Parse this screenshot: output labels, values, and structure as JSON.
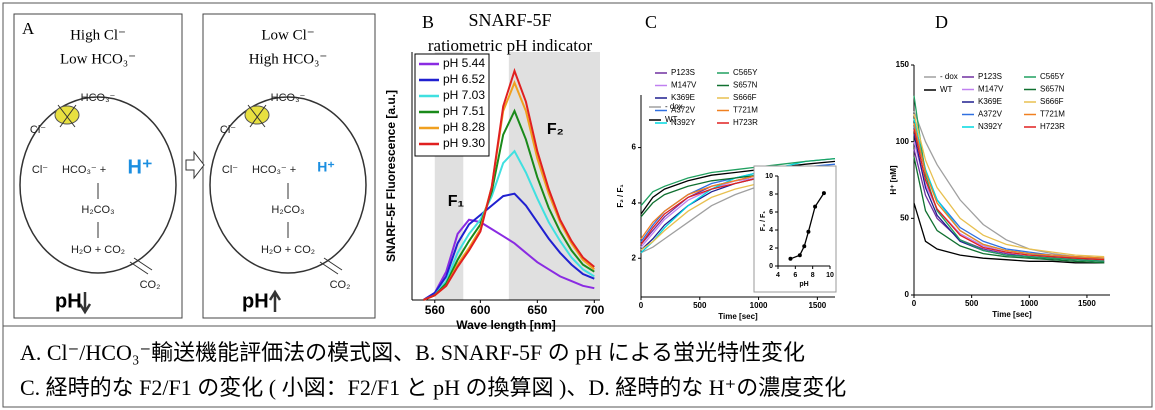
{
  "diagram": {
    "left": {
      "label": "A",
      "title": [
        "High Cl⁻",
        "Low HCO₃⁻"
      ],
      "labels": [
        "Cl⁻",
        "HCO₃⁻",
        "Cl⁻",
        "HCO₃⁻ + ",
        "H⁺",
        "H₂CO₃",
        "H₂O + CO₂",
        "CO₂"
      ],
      "result": "pH"
    },
    "right": {
      "title": [
        "Low Cl⁻",
        "High HCO₃⁻"
      ],
      "labels": [
        "Cl⁻",
        "HCO₃⁻",
        "Cl⁻",
        "HCO₃⁻ + ",
        "H⁺",
        "H₂CO₃",
        "H₂O + CO₂",
        "CO₂"
      ],
      "result": "pH"
    }
  },
  "chart_data": [
    {
      "type": "line",
      "panel_label": "B",
      "title": "SNARF-5F",
      "subtitle": "ratiometric pH indicator",
      "x_label": "Wave length [nm]",
      "y_label": "SNARF-5F Fluorescence [a.u.]",
      "xlim": [
        540,
        705
      ],
      "xticks": [
        560,
        600,
        650,
        700
      ],
      "ylim": [
        0,
        1.05
      ],
      "legend": "upper left",
      "shaded_regions": [
        {
          "label": "F₁",
          "from": 560,
          "to": 585
        },
        {
          "label": "F₂",
          "from": 625,
          "to": 705
        }
      ],
      "x": [
        550,
        560,
        570,
        580,
        590,
        600,
        610,
        620,
        630,
        640,
        650,
        660,
        670,
        680,
        690,
        700
      ],
      "series": [
        {
          "name": "pH 5.44",
          "color": "#8a2be2",
          "values": [
            0,
            0.03,
            0.12,
            0.28,
            0.34,
            0.33,
            0.3,
            0.27,
            0.24,
            0.2,
            0.16,
            0.13,
            0.1,
            0.08,
            0.06,
            0.05
          ]
        },
        {
          "name": "pH 6.52",
          "color": "#2020d0",
          "values": [
            0,
            0.03,
            0.1,
            0.24,
            0.32,
            0.36,
            0.4,
            0.44,
            0.45,
            0.4,
            0.33,
            0.26,
            0.2,
            0.15,
            0.11,
            0.09
          ]
        },
        {
          "name": "pH 7.03",
          "color": "#40e0e0",
          "values": [
            0,
            0.02,
            0.08,
            0.2,
            0.28,
            0.34,
            0.44,
            0.58,
            0.63,
            0.54,
            0.43,
            0.33,
            0.25,
            0.18,
            0.13,
            0.1
          ]
        },
        {
          "name": "pH 7.51",
          "color": "#1a8a1a",
          "values": [
            0,
            0.02,
            0.07,
            0.17,
            0.25,
            0.32,
            0.46,
            0.7,
            0.8,
            0.68,
            0.52,
            0.39,
            0.29,
            0.21,
            0.15,
            0.12
          ]
        },
        {
          "name": "pH 8.28",
          "color": "#f0a020",
          "values": [
            0,
            0.02,
            0.06,
            0.15,
            0.22,
            0.3,
            0.48,
            0.8,
            0.92,
            0.8,
            0.6,
            0.45,
            0.33,
            0.24,
            0.17,
            0.13
          ]
        },
        {
          "name": "pH 9.30",
          "color": "#e02020",
          "values": [
            0,
            0.02,
            0.06,
            0.14,
            0.21,
            0.29,
            0.48,
            0.82,
            0.97,
            0.84,
            0.63,
            0.47,
            0.34,
            0.25,
            0.18,
            0.14
          ]
        }
      ]
    },
    {
      "type": "line",
      "panel_label": "C",
      "x_label": "Time [sec]",
      "y_label": "F₂ / F₁",
      "xlim": [
        0,
        1650
      ],
      "xticks": [
        0,
        500,
        1000,
        1500
      ],
      "ylim": [
        0.6,
        7.9
      ],
      "yticks": [
        2,
        4,
        6
      ],
      "legend": "upper right",
      "x": [
        0,
        100,
        200,
        400,
        600,
        800,
        1000,
        1200,
        1400,
        1650
      ],
      "series": [
        {
          "name": "- dox",
          "color": "#a0a0a0",
          "values": [
            2.2,
            2.4,
            2.7,
            3.3,
            3.9,
            4.3,
            4.6,
            4.8,
            5.0,
            5.1
          ]
        },
        {
          "name": "WT",
          "color": "#000000",
          "values": [
            3.6,
            4.2,
            4.5,
            4.8,
            5.0,
            5.1,
            5.2,
            5.3,
            5.4,
            5.5
          ]
        },
        {
          "name": "P123S",
          "color": "#7030a0",
          "values": [
            2.5,
            3.0,
            3.5,
            4.2,
            4.6,
            4.8,
            5.0,
            5.1,
            5.2,
            5.3
          ]
        },
        {
          "name": "M147V",
          "color": "#c080f0",
          "values": [
            2.4,
            2.9,
            3.4,
            4.1,
            4.5,
            4.8,
            4.9,
            5.0,
            5.2,
            5.3
          ]
        },
        {
          "name": "K369E",
          "color": "#1f1f8f",
          "values": [
            2.3,
            2.7,
            3.2,
            3.9,
            4.4,
            4.7,
            4.9,
            5.0,
            5.1,
            5.2
          ]
        },
        {
          "name": "A372V",
          "color": "#3070e0",
          "values": [
            2.6,
            3.2,
            3.7,
            4.3,
            4.7,
            4.9,
            5.1,
            5.2,
            5.3,
            5.4
          ]
        },
        {
          "name": "N392Y",
          "color": "#00d8e0",
          "values": [
            2.2,
            2.6,
            3.1,
            3.9,
            4.5,
            4.9,
            5.1,
            5.3,
            5.5,
            5.6
          ]
        },
        {
          "name": "C565Y",
          "color": "#20a060",
          "values": [
            3.9,
            4.4,
            4.6,
            4.9,
            5.1,
            5.2,
            5.3,
            5.4,
            5.5,
            5.6
          ]
        },
        {
          "name": "S657N",
          "color": "#107030",
          "values": [
            3.5,
            4.0,
            4.3,
            4.6,
            4.8,
            4.9,
            5.0,
            5.1,
            5.2,
            5.3
          ]
        },
        {
          "name": "S666F",
          "color": "#e8c050",
          "values": [
            2.3,
            2.6,
            3.0,
            3.7,
            4.2,
            4.5,
            4.7,
            4.8,
            4.9,
            5.0
          ]
        },
        {
          "name": "T721M",
          "color": "#f08020",
          "values": [
            2.7,
            3.3,
            3.7,
            4.3,
            4.6,
            4.8,
            5.0,
            5.1,
            5.2,
            5.3
          ]
        },
        {
          "name": "H723R",
          "color": "#e02020",
          "values": [
            2.5,
            3.1,
            3.6,
            4.2,
            4.5,
            4.7,
            4.9,
            5.0,
            5.1,
            5.2
          ]
        }
      ]
    },
    {
      "type": "line",
      "markers": true,
      "x_label": "pH",
      "y_label": "F₂ / F₁",
      "xlim": [
        4,
        10
      ],
      "xticks": [
        4,
        6,
        8,
        10
      ],
      "ylim": [
        0,
        10
      ],
      "yticks": [
        0,
        2,
        4,
        6,
        8,
        10
      ],
      "x": [
        5.44,
        6.52,
        7.03,
        7.51,
        8.28,
        9.3
      ],
      "series": [
        {
          "color": "#000000",
          "values": [
            0.8,
            1.2,
            2.2,
            3.8,
            6.6,
            8.1
          ]
        }
      ]
    },
    {
      "type": "line",
      "panel_label": "D",
      "x_label": "Time [sec]",
      "y_label": "H⁺ [nM]",
      "xlim": [
        0,
        1700
      ],
      "xticks": [
        0,
        500,
        1000,
        1500
      ],
      "ylim": [
        0,
        150
      ],
      "yticks": [
        0,
        50,
        100,
        150
      ],
      "legend": "upper right",
      "x": [
        0,
        100,
        200,
        400,
        600,
        800,
        1000,
        1200,
        1400,
        1650
      ],
      "series": [
        {
          "name": "- dox",
          "color": "#a0a0a0",
          "values": [
            120,
            100,
            85,
            62,
            46,
            36,
            30,
            27,
            25,
            24
          ]
        },
        {
          "name": "WT",
          "color": "#000000",
          "values": [
            60,
            35,
            30,
            26,
            24,
            23,
            22,
            22,
            21,
            21
          ]
        },
        {
          "name": "P123S",
          "color": "#7030a0",
          "values": [
            95,
            65,
            50,
            36,
            30,
            27,
            25,
            24,
            23,
            22
          ]
        },
        {
          "name": "M147V",
          "color": "#c080f0",
          "values": [
            100,
            72,
            56,
            40,
            32,
            28,
            26,
            25,
            24,
            23
          ]
        },
        {
          "name": "K369E",
          "color": "#1f1f8f",
          "values": [
            105,
            70,
            52,
            35,
            29,
            26,
            25,
            24,
            23,
            22
          ]
        },
        {
          "name": "A372V",
          "color": "#3070e0",
          "values": [
            110,
            80,
            62,
            44,
            35,
            30,
            28,
            26,
            25,
            24
          ]
        },
        {
          "name": "N392Y",
          "color": "#00d8e0",
          "values": [
            115,
            82,
            62,
            42,
            33,
            29,
            27,
            25,
            24,
            23
          ]
        },
        {
          "name": "C565Y",
          "color": "#20a060",
          "values": [
            130,
            78,
            55,
            36,
            29,
            26,
            25,
            24,
            23,
            22
          ]
        },
        {
          "name": "S657N",
          "color": "#107030",
          "values": [
            90,
            55,
            42,
            32,
            27,
            25,
            24,
            23,
            22,
            21
          ]
        },
        {
          "name": "S666F",
          "color": "#e8c050",
          "values": [
            118,
            88,
            70,
            50,
            39,
            33,
            30,
            28,
            26,
            25
          ]
        },
        {
          "name": "T721M",
          "color": "#f08020",
          "values": [
            112,
            80,
            60,
            42,
            33,
            29,
            27,
            26,
            25,
            24
          ]
        },
        {
          "name": "H723R",
          "color": "#e02020",
          "values": [
            108,
            75,
            56,
            39,
            31,
            28,
            26,
            25,
            24,
            23
          ]
        }
      ]
    }
  ],
  "caption": [
    "A. Cl⁻/HCO₃⁻輸送機能評価法の模式図、B. SNARF-5F の pH による蛍光特性変化",
    "C.  経時的な F2/F1 の変化 ( 小図：F2/F1 と pH の換算図 )、D.  経時的な H⁺の濃度変化"
  ]
}
